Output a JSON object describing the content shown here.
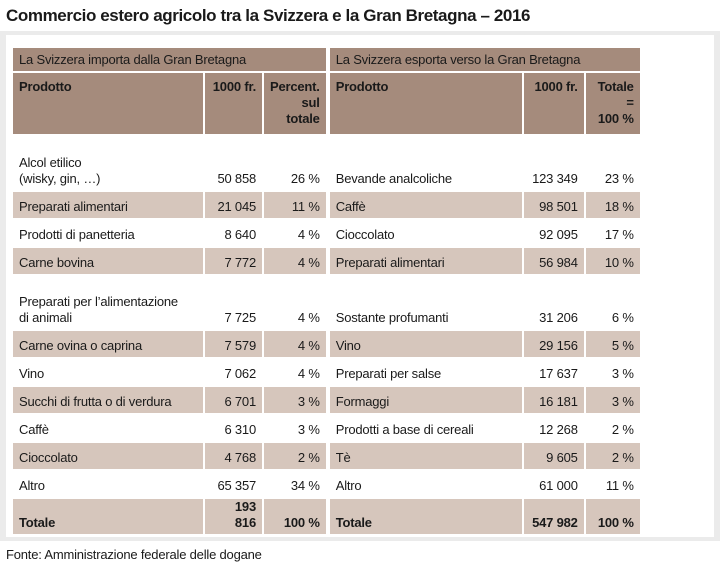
{
  "title": "Commercio estero agricolo tra la Svizzera e la Gran Bretagna – 2016",
  "import": {
    "group": "La Svizzera importa dalla Gran Bretagna",
    "headers": [
      "Prodotto",
      "1000 fr.",
      "Percent.\nsul totale"
    ],
    "rows": [
      [
        "Alcol etilico\n(wisky, gin, …)",
        "50 858",
        "26 %"
      ],
      [
        "Preparati alimentari",
        "21 045",
        "11 %"
      ],
      [
        "Prodotti di panetteria",
        "8 640",
        "4 %"
      ],
      [
        "Carne bovina",
        "7 772",
        "4 %"
      ],
      [
        "Preparati per l’alimentazione\ndi animali",
        "7 725",
        "4 %"
      ],
      [
        "Carne ovina o caprina",
        "7 579",
        "4 %"
      ],
      [
        "Vino",
        "7 062",
        "4 %"
      ],
      [
        "Succhi di frutta o di verdura",
        "6 701",
        "3 %"
      ],
      [
        "Caffè",
        "6 310",
        "3 %"
      ],
      [
        "Cioccolato",
        "4 768",
        "2 %"
      ],
      [
        "Altro",
        "65 357",
        "34 %"
      ]
    ],
    "total": [
      "Totale",
      "193 816",
      "100 %"
    ]
  },
  "export": {
    "group": "La Svizzera esporta verso la Gran Bretagna",
    "headers": [
      "Prodotto",
      "1000 fr.",
      "Totale =\n100 %"
    ],
    "rows": [
      [
        "Bevande analcoliche",
        "123 349",
        "23 %"
      ],
      [
        "Caffè",
        "98 501",
        "18 %"
      ],
      [
        "Cioccolato",
        "92 095",
        "17 %"
      ],
      [
        "Preparati alimentari",
        "56 984",
        "10 %"
      ],
      [
        "Sostante profumanti",
        "31 206",
        "6 %"
      ],
      [
        "Vino",
        "29 156",
        "5 %"
      ],
      [
        "Preparati per salse",
        "17 637",
        "3 %"
      ],
      [
        "Formaggi",
        "16 181",
        "3 %"
      ],
      [
        "Prodotti a base di cereali",
        "12 268",
        "2 %"
      ],
      [
        "Tè",
        "9 605",
        "2 %"
      ],
      [
        "Altro",
        "61 000",
        "11 %"
      ]
    ],
    "total": [
      "Totale",
      "547 982",
      "100 %"
    ]
  },
  "source": "Fonte: Amministrazione federale delle dogane"
}
